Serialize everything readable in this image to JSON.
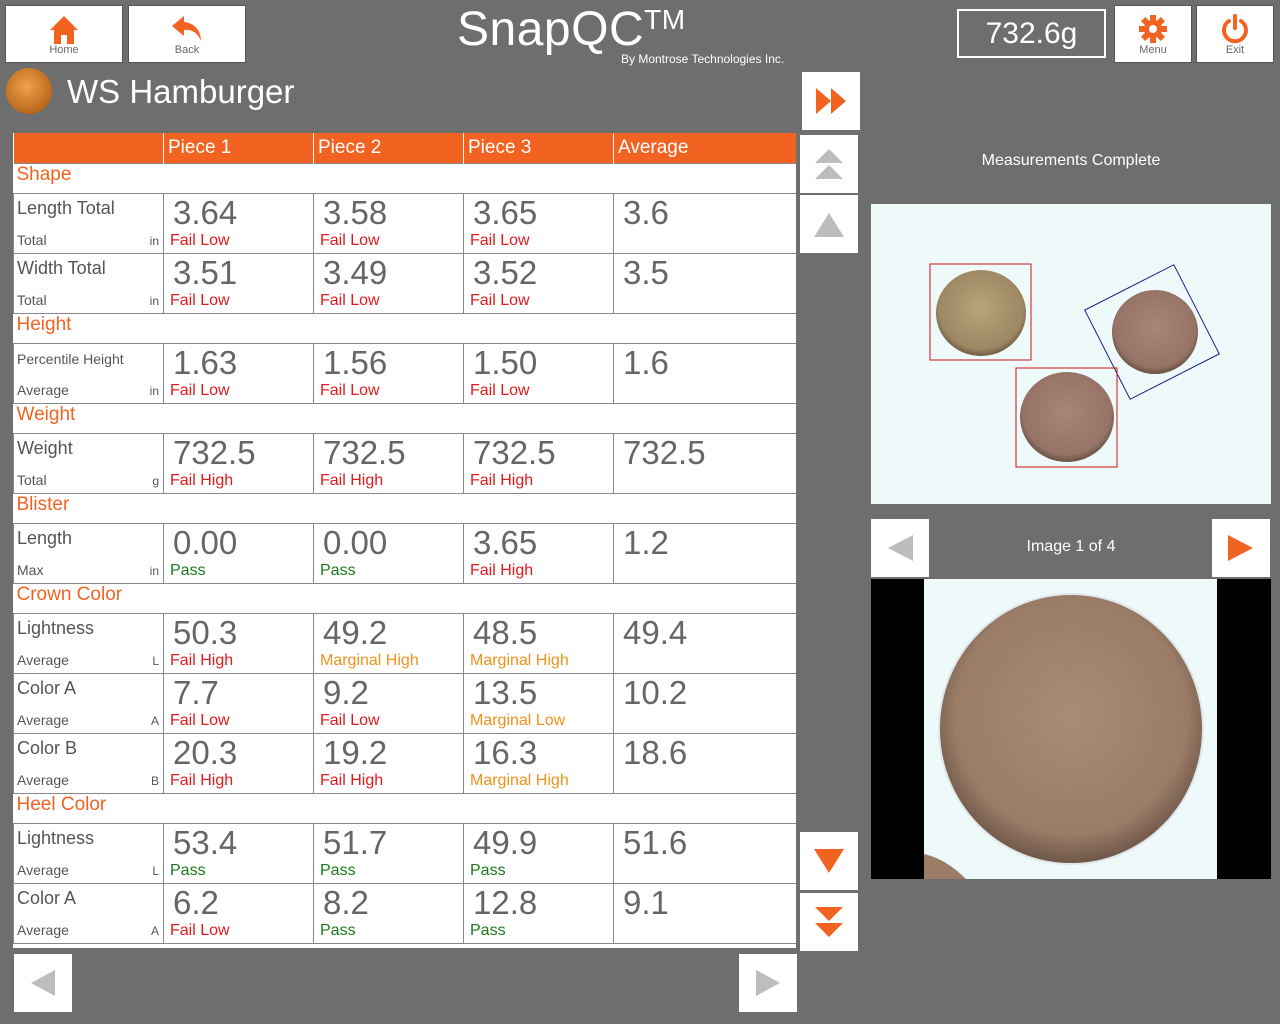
{
  "header": {
    "home_label": "Home",
    "back_label": "Back",
    "app_title": "SnapQC",
    "trademark": "TM",
    "subtitle": "By Montrose Technologies Inc.",
    "weight_reading": "732.6g",
    "menu_label": "Menu",
    "exit_label": "Exit"
  },
  "product": {
    "name": "WS Hamburger"
  },
  "colors": {
    "accent": "#f26322",
    "fail": "#e01b1b",
    "pass": "#1b7a1b",
    "marginal": "#f0911a"
  },
  "table": {
    "columns": [
      "",
      "Piece 1",
      "Piece 2",
      "Piece 3",
      "Average"
    ],
    "sections": [
      {
        "title": "Shape",
        "rows": [
          {
            "name": "Length Total",
            "sub": "Total",
            "unit": "in",
            "cells": [
              {
                "value": "3.64",
                "status": "Fail Low",
                "kind": "fail"
              },
              {
                "value": "3.58",
                "status": "Fail Low",
                "kind": "fail"
              },
              {
                "value": "3.65",
                "status": "Fail Low",
                "kind": "fail"
              }
            ],
            "average": "3.6"
          },
          {
            "name": "Width Total",
            "sub": "Total",
            "unit": "in",
            "cells": [
              {
                "value": "3.51",
                "status": "Fail Low",
                "kind": "fail"
              },
              {
                "value": "3.49",
                "status": "Fail Low",
                "kind": "fail"
              },
              {
                "value": "3.52",
                "status": "Fail Low",
                "kind": "fail"
              }
            ],
            "average": "3.5"
          }
        ]
      },
      {
        "title": "Height",
        "rows": [
          {
            "name": "Percentile Height",
            "sub": "Average",
            "unit": "in",
            "small": true,
            "cells": [
              {
                "value": "1.63",
                "status": "Fail Low",
                "kind": "fail"
              },
              {
                "value": "1.56",
                "status": "Fail Low",
                "kind": "fail"
              },
              {
                "value": "1.50",
                "status": "Fail Low",
                "kind": "fail"
              }
            ],
            "average": "1.6"
          }
        ]
      },
      {
        "title": "Weight",
        "rows": [
          {
            "name": "Weight",
            "sub": "Total",
            "unit": "g",
            "cells": [
              {
                "value": "732.5",
                "status": "Fail High",
                "kind": "fail"
              },
              {
                "value": "732.5",
                "status": "Fail High",
                "kind": "fail"
              },
              {
                "value": "732.5",
                "status": "Fail High",
                "kind": "fail"
              }
            ],
            "average": "732.5"
          }
        ]
      },
      {
        "title": "Blister",
        "rows": [
          {
            "name": "Length",
            "sub": "Max",
            "unit": "in",
            "cells": [
              {
                "value": "0.00",
                "status": "Pass",
                "kind": "pass"
              },
              {
                "value": "0.00",
                "status": "Pass",
                "kind": "pass"
              },
              {
                "value": "3.65",
                "status": "Fail High",
                "kind": "fail"
              }
            ],
            "average": "1.2"
          }
        ]
      },
      {
        "title": "Crown Color",
        "rows": [
          {
            "name": "Lightness",
            "sub": "Average",
            "unit": "L",
            "cells": [
              {
                "value": "50.3",
                "status": "Fail High",
                "kind": "fail"
              },
              {
                "value": "49.2",
                "status": "Marginal High",
                "kind": "marg"
              },
              {
                "value": "48.5",
                "status": "Marginal High",
                "kind": "marg"
              }
            ],
            "average": "49.4"
          },
          {
            "name": "Color A",
            "sub": "Average",
            "unit": "A",
            "cells": [
              {
                "value": "7.7",
                "status": "Fail Low",
                "kind": "fail"
              },
              {
                "value": "9.2",
                "status": "Fail Low",
                "kind": "fail"
              },
              {
                "value": "13.5",
                "status": "Marginal Low",
                "kind": "marg"
              }
            ],
            "average": "10.2"
          },
          {
            "name": "Color B",
            "sub": "Average",
            "unit": "B",
            "cells": [
              {
                "value": "20.3",
                "status": "Fail High",
                "kind": "fail"
              },
              {
                "value": "19.2",
                "status": "Fail High",
                "kind": "fail"
              },
              {
                "value": "16.3",
                "status": "Marginal High",
                "kind": "marg"
              }
            ],
            "average": "18.6"
          }
        ]
      },
      {
        "title": "Heel Color",
        "rows": [
          {
            "name": "Lightness",
            "sub": "Average",
            "unit": "L",
            "cells": [
              {
                "value": "53.4",
                "status": "Pass",
                "kind": "pass"
              },
              {
                "value": "51.7",
                "status": "Pass",
                "kind": "pass"
              },
              {
                "value": "49.9",
                "status": "Pass",
                "kind": "pass"
              }
            ],
            "average": "51.6"
          },
          {
            "name": "Color A",
            "sub": "Average",
            "unit": "A",
            "cells": [
              {
                "value": "6.2",
                "status": "Fail Low",
                "kind": "fail"
              },
              {
                "value": "8.2",
                "status": "Pass",
                "kind": "pass"
              },
              {
                "value": "12.8",
                "status": "Pass",
                "kind": "pass"
              }
            ],
            "average": "9.1"
          }
        ]
      }
    ]
  },
  "right_panel": {
    "status_message": "Measurements Complete",
    "image_counter": "Image 1 of 4"
  },
  "icons": [
    "home-icon",
    "back-arrow-icon",
    "gear-icon",
    "power-icon",
    "fast-forward-icon",
    "double-up-icon",
    "up-icon",
    "down-icon",
    "double-down-icon",
    "left-arrow-icon",
    "right-arrow-icon"
  ]
}
